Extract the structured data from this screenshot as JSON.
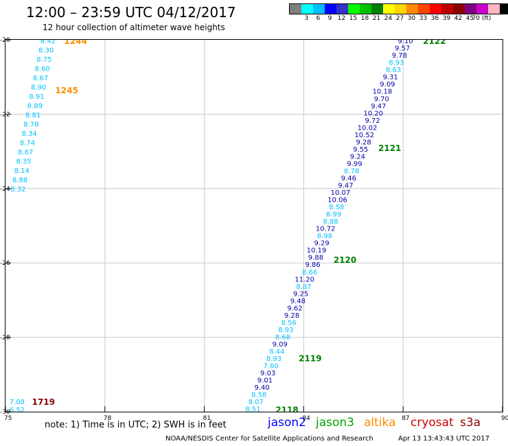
{
  "header": {
    "title": "12:00 – 23:59 UTC 04/12/2017",
    "subtitle": "12 hour collection of altimeter wave heights"
  },
  "legend": {
    "colors": [
      "#7f7f7f",
      "#00ffff",
      "#00bfff",
      "#0000ff",
      "#3333cc",
      "#00ff00",
      "#00c000",
      "#008000",
      "#ffff00",
      "#ffd700",
      "#ff8c00",
      "#ff4500",
      "#ff0000",
      "#c00000",
      "#8b0000",
      "#800080",
      "#cc00cc",
      "#ffb6c1",
      "#000000"
    ],
    "labels": [
      "3",
      "6",
      "9",
      "12",
      "15",
      "18",
      "21",
      "24",
      "27",
      "30",
      "33",
      "36",
      "39",
      "42",
      "45",
      "70 (ft)"
    ]
  },
  "map": {
    "x_ticks": [
      "75",
      "78",
      "81",
      "84",
      "87",
      "90"
    ],
    "y_ticks": [
      "-20",
      "-22",
      "-24",
      "-26",
      "-28",
      "-30"
    ],
    "tracks": [
      {
        "id": "1244",
        "color": "#ff8c00",
        "lon": 76.77,
        "lat": -20.02
      },
      {
        "id": "1245",
        "color": "#ff8c00",
        "lon": 76.5,
        "lat": -21.35
      },
      {
        "id": "1719",
        "color": "#8b0000",
        "lon": 75.8,
        "lat": -29.72
      },
      {
        "id": "2118",
        "color": "#008000",
        "lon": 83.15,
        "lat": -29.94
      },
      {
        "id": "2119",
        "color": "#008000",
        "lon": 83.85,
        "lat": -28.55
      },
      {
        "id": "2120",
        "color": "#008000",
        "lon": 84.9,
        "lat": -25.9
      },
      {
        "id": "2121",
        "color": "#008000",
        "lon": 86.25,
        "lat": -22.9
      },
      {
        "id": "2122",
        "color": "#008000",
        "lon": 87.6,
        "lat": -20.02
      }
    ],
    "obs_west": [
      {
        "v": "8.42",
        "c": "#00bfff"
      },
      {
        "v": "8.30",
        "c": "#00bfff"
      },
      {
        "v": "8.75",
        "c": "#00bfff"
      },
      {
        "v": "8.60",
        "c": "#00bfff"
      },
      {
        "v": "8.67",
        "c": "#00bfff"
      },
      {
        "v": "8.90",
        "c": "#00bfff"
      },
      {
        "v": "8.91",
        "c": "#00bfff"
      },
      {
        "v": "8.89",
        "c": "#00bfff"
      },
      {
        "v": "8.81",
        "c": "#00bfff"
      },
      {
        "v": "8.78",
        "c": "#00bfff"
      },
      {
        "v": "8.34",
        "c": "#00bfff"
      },
      {
        "v": "8.74",
        "c": "#00bfff"
      },
      {
        "v": "8.67",
        "c": "#00bfff"
      },
      {
        "v": "8.35",
        "c": "#00bfff"
      },
      {
        "v": "8.14",
        "c": "#00bfff"
      },
      {
        "v": "8.88",
        "c": "#00bfff"
      },
      {
        "v": "8.32",
        "c": "#00bfff"
      }
    ],
    "obs_east": [
      {
        "v": "9.10",
        "c": "#0000aa"
      },
      {
        "v": "9.57",
        "c": "#0000aa"
      },
      {
        "v": "9.78",
        "c": "#0000aa"
      },
      {
        "v": "8.93",
        "c": "#00bfff"
      },
      {
        "v": "8.63",
        "c": "#00bfff"
      },
      {
        "v": "9.31",
        "c": "#0000aa"
      },
      {
        "v": "9.09",
        "c": "#0000aa"
      },
      {
        "v": "10.18",
        "c": "#0000aa"
      },
      {
        "v": "9.70",
        "c": "#0000aa"
      },
      {
        "v": "9.47",
        "c": "#0000aa"
      },
      {
        "v": "10.20",
        "c": "#0000aa"
      },
      {
        "v": "9.72",
        "c": "#0000aa"
      },
      {
        "v": "10.02",
        "c": "#0000aa"
      },
      {
        "v": "10.52",
        "c": "#0000aa"
      },
      {
        "v": "9.28",
        "c": "#0000aa"
      },
      {
        "v": "9.55",
        "c": "#0000aa"
      },
      {
        "v": "9.24",
        "c": "#0000aa"
      },
      {
        "v": "9.99",
        "c": "#0000aa"
      },
      {
        "v": "8.78",
        "c": "#00bfff"
      },
      {
        "v": "9.46",
        "c": "#0000aa"
      },
      {
        "v": "9.47",
        "c": "#0000aa"
      },
      {
        "v": "10.07",
        "c": "#0000aa"
      },
      {
        "v": "10.06",
        "c": "#0000aa"
      },
      {
        "v": "8.58",
        "c": "#00bfff"
      },
      {
        "v": "8.99",
        "c": "#00bfff"
      },
      {
        "v": "8.88",
        "c": "#00bfff"
      },
      {
        "v": "10.72",
        "c": "#0000aa"
      },
      {
        "v": "8.98",
        "c": "#00bfff"
      },
      {
        "v": "9.29",
        "c": "#0000aa"
      },
      {
        "v": "10.19",
        "c": "#0000aa"
      },
      {
        "v": "9.88",
        "c": "#0000aa"
      },
      {
        "v": "9.86",
        "c": "#0000aa"
      },
      {
        "v": "8.66",
        "c": "#00bfff"
      },
      {
        "v": "11.20",
        "c": "#0000aa"
      },
      {
        "v": "8.87",
        "c": "#00bfff"
      },
      {
        "v": "9.25",
        "c": "#0000aa"
      },
      {
        "v": "9.48",
        "c": "#0000aa"
      },
      {
        "v": "9.62",
        "c": "#0000aa"
      },
      {
        "v": "9.28",
        "c": "#0000aa"
      },
      {
        "v": "8.56",
        "c": "#00bfff"
      },
      {
        "v": "8.93",
        "c": "#00bfff"
      },
      {
        "v": "8.68",
        "c": "#00bfff"
      },
      {
        "v": "9.09",
        "c": "#0000aa"
      },
      {
        "v": "8.44",
        "c": "#00bfff"
      },
      {
        "v": "8.93",
        "c": "#00bfff"
      },
      {
        "v": "7.60",
        "c": "#00bfff"
      },
      {
        "v": "9.03",
        "c": "#0000aa"
      },
      {
        "v": "9.01",
        "c": "#0000aa"
      },
      {
        "v": "9.40",
        "c": "#0000aa"
      },
      {
        "v": "8.58",
        "c": "#00bfff"
      },
      {
        "v": "8.07",
        "c": "#00bfff"
      },
      {
        "v": "8.51",
        "c": "#00bfff"
      }
    ],
    "obs_sw": [
      {
        "v": "7.08",
        "c": "#00bfff"
      },
      {
        "v": "6.52",
        "c": "#00bfff"
      }
    ]
  },
  "note": "note: 1) Time is in UTC; 2) SWH is in feet",
  "missions": [
    {
      "name": "jason2",
      "color": "#0000ff"
    },
    {
      "name": "jason3",
      "color": "#00a000"
    },
    {
      "name": "altika",
      "color": "#ff8c00"
    },
    {
      "name": "cryosat",
      "color": "#cc0000"
    },
    {
      "name": "s3a",
      "color": "#8b0000"
    }
  ],
  "footer": {
    "credit": "NOAA/NESDIS Center for Satellite Applications and Research",
    "timestamp": "Apr 13 13:43:43 UTC 2017"
  }
}
